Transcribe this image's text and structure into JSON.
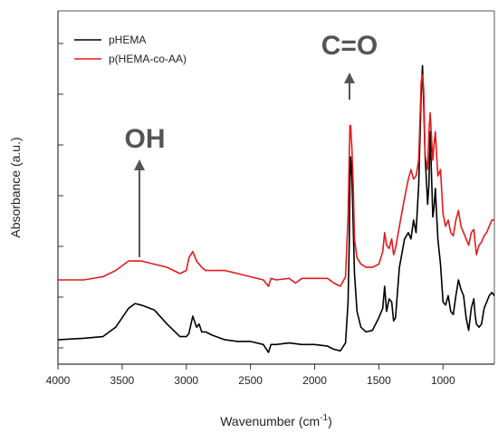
{
  "chart_data": {
    "type": "line",
    "xlabel": "Wavenumber (cm",
    "xlabel_sup": "-1",
    "xlabel_close": ")",
    "ylabel": "Absorbance (a.u.)",
    "xlim": [
      4000,
      600
    ],
    "x_reversed": true,
    "xticks": [
      4000,
      3500,
      3000,
      2500,
      2000,
      1500,
      1000
    ],
    "ylim": [
      0,
      1
    ],
    "y_tick_labels_shown": false,
    "grid": false,
    "legend_position": "top-left",
    "series": [
      {
        "name": "pHEMA",
        "color": "#000000",
        "x": [
          4000,
          3800,
          3650,
          3550,
          3450,
          3400,
          3350,
          3250,
          3150,
          3050,
          3000,
          2980,
          2950,
          2920,
          2900,
          2880,
          2850,
          2800,
          2700,
          2600,
          2500,
          2400,
          2360,
          2340,
          2300,
          2200,
          2100,
          2000,
          1900,
          1850,
          1800,
          1760,
          1740,
          1730,
          1725,
          1720,
          1710,
          1700,
          1690,
          1670,
          1640,
          1600,
          1550,
          1500,
          1470,
          1455,
          1440,
          1420,
          1400,
          1385,
          1370,
          1340,
          1300,
          1270,
          1250,
          1230,
          1210,
          1190,
          1170,
          1160,
          1150,
          1140,
          1120,
          1110,
          1100,
          1080,
          1070,
          1060,
          1040,
          1020,
          1000,
          980,
          960,
          940,
          920,
          900,
          880,
          860,
          840,
          820,
          800,
          780,
          760,
          750,
          740,
          720,
          700,
          680,
          660,
          640,
          620,
          600
        ],
        "y": [
          0.06,
          0.065,
          0.07,
          0.1,
          0.16,
          0.175,
          0.17,
          0.155,
          0.11,
          0.07,
          0.07,
          0.08,
          0.135,
          0.1,
          0.11,
          0.085,
          0.085,
          0.075,
          0.06,
          0.055,
          0.055,
          0.045,
          0.02,
          0.045,
          0.045,
          0.05,
          0.045,
          0.045,
          0.04,
          0.03,
          0.025,
          0.05,
          0.18,
          0.38,
          0.57,
          0.64,
          0.58,
          0.42,
          0.27,
          0.15,
          0.1,
          0.085,
          0.09,
          0.13,
          0.16,
          0.23,
          0.15,
          0.19,
          0.18,
          0.12,
          0.13,
          0.29,
          0.38,
          0.4,
          0.38,
          0.44,
          0.4,
          0.55,
          0.84,
          0.93,
          0.8,
          0.65,
          0.49,
          0.55,
          0.72,
          0.45,
          0.48,
          0.54,
          0.38,
          0.3,
          0.18,
          0.17,
          0.2,
          0.15,
          0.14,
          0.2,
          0.25,
          0.22,
          0.2,
          0.13,
          0.09,
          0.16,
          0.19,
          0.14,
          0.11,
          0.1,
          0.11,
          0.16,
          0.18,
          0.2,
          0.21,
          0.2
        ]
      },
      {
        "name": "p(HEMA-co-AA)",
        "color": "#e41a1c",
        "x": [
          4000,
          3800,
          3650,
          3550,
          3450,
          3400,
          3350,
          3250,
          3150,
          3050,
          3000,
          2980,
          2950,
          2920,
          2900,
          2880,
          2850,
          2800,
          2700,
          2600,
          2500,
          2400,
          2360,
          2340,
          2300,
          2200,
          2150,
          2100,
          2000,
          1900,
          1850,
          1800,
          1760,
          1740,
          1730,
          1725,
          1720,
          1710,
          1700,
          1690,
          1670,
          1640,
          1600,
          1550,
          1500,
          1470,
          1455,
          1440,
          1420,
          1400,
          1385,
          1370,
          1340,
          1300,
          1270,
          1250,
          1230,
          1210,
          1190,
          1170,
          1160,
          1150,
          1140,
          1120,
          1110,
          1100,
          1080,
          1070,
          1060,
          1040,
          1020,
          1000,
          980,
          960,
          940,
          920,
          900,
          880,
          860,
          840,
          820,
          800,
          780,
          760,
          750,
          740,
          720,
          700,
          680,
          660,
          640,
          620,
          600
        ],
        "y": [
          0.25,
          0.25,
          0.26,
          0.28,
          0.31,
          0.31,
          0.31,
          0.3,
          0.29,
          0.27,
          0.28,
          0.32,
          0.34,
          0.31,
          0.3,
          0.29,
          0.28,
          0.28,
          0.28,
          0.27,
          0.26,
          0.25,
          0.23,
          0.255,
          0.25,
          0.255,
          0.24,
          0.255,
          0.255,
          0.255,
          0.24,
          0.23,
          0.26,
          0.45,
          0.66,
          0.74,
          0.74,
          0.67,
          0.55,
          0.38,
          0.32,
          0.3,
          0.29,
          0.29,
          0.3,
          0.34,
          0.4,
          0.36,
          0.35,
          0.38,
          0.33,
          0.35,
          0.42,
          0.51,
          0.57,
          0.6,
          0.57,
          0.58,
          0.63,
          0.88,
          0.9,
          0.85,
          0.65,
          0.6,
          0.72,
          0.78,
          0.63,
          0.68,
          0.72,
          0.58,
          0.6,
          0.46,
          0.42,
          0.44,
          0.4,
          0.39,
          0.44,
          0.47,
          0.42,
          0.4,
          0.38,
          0.36,
          0.4,
          0.41,
          0.37,
          0.33,
          0.36,
          0.37,
          0.39,
          0.4,
          0.42,
          0.44,
          0.44
        ]
      }
    ],
    "annotations": [
      {
        "label": "OH",
        "at_x": 3400
      },
      {
        "label": "C=O",
        "at_x": 1720
      }
    ]
  }
}
